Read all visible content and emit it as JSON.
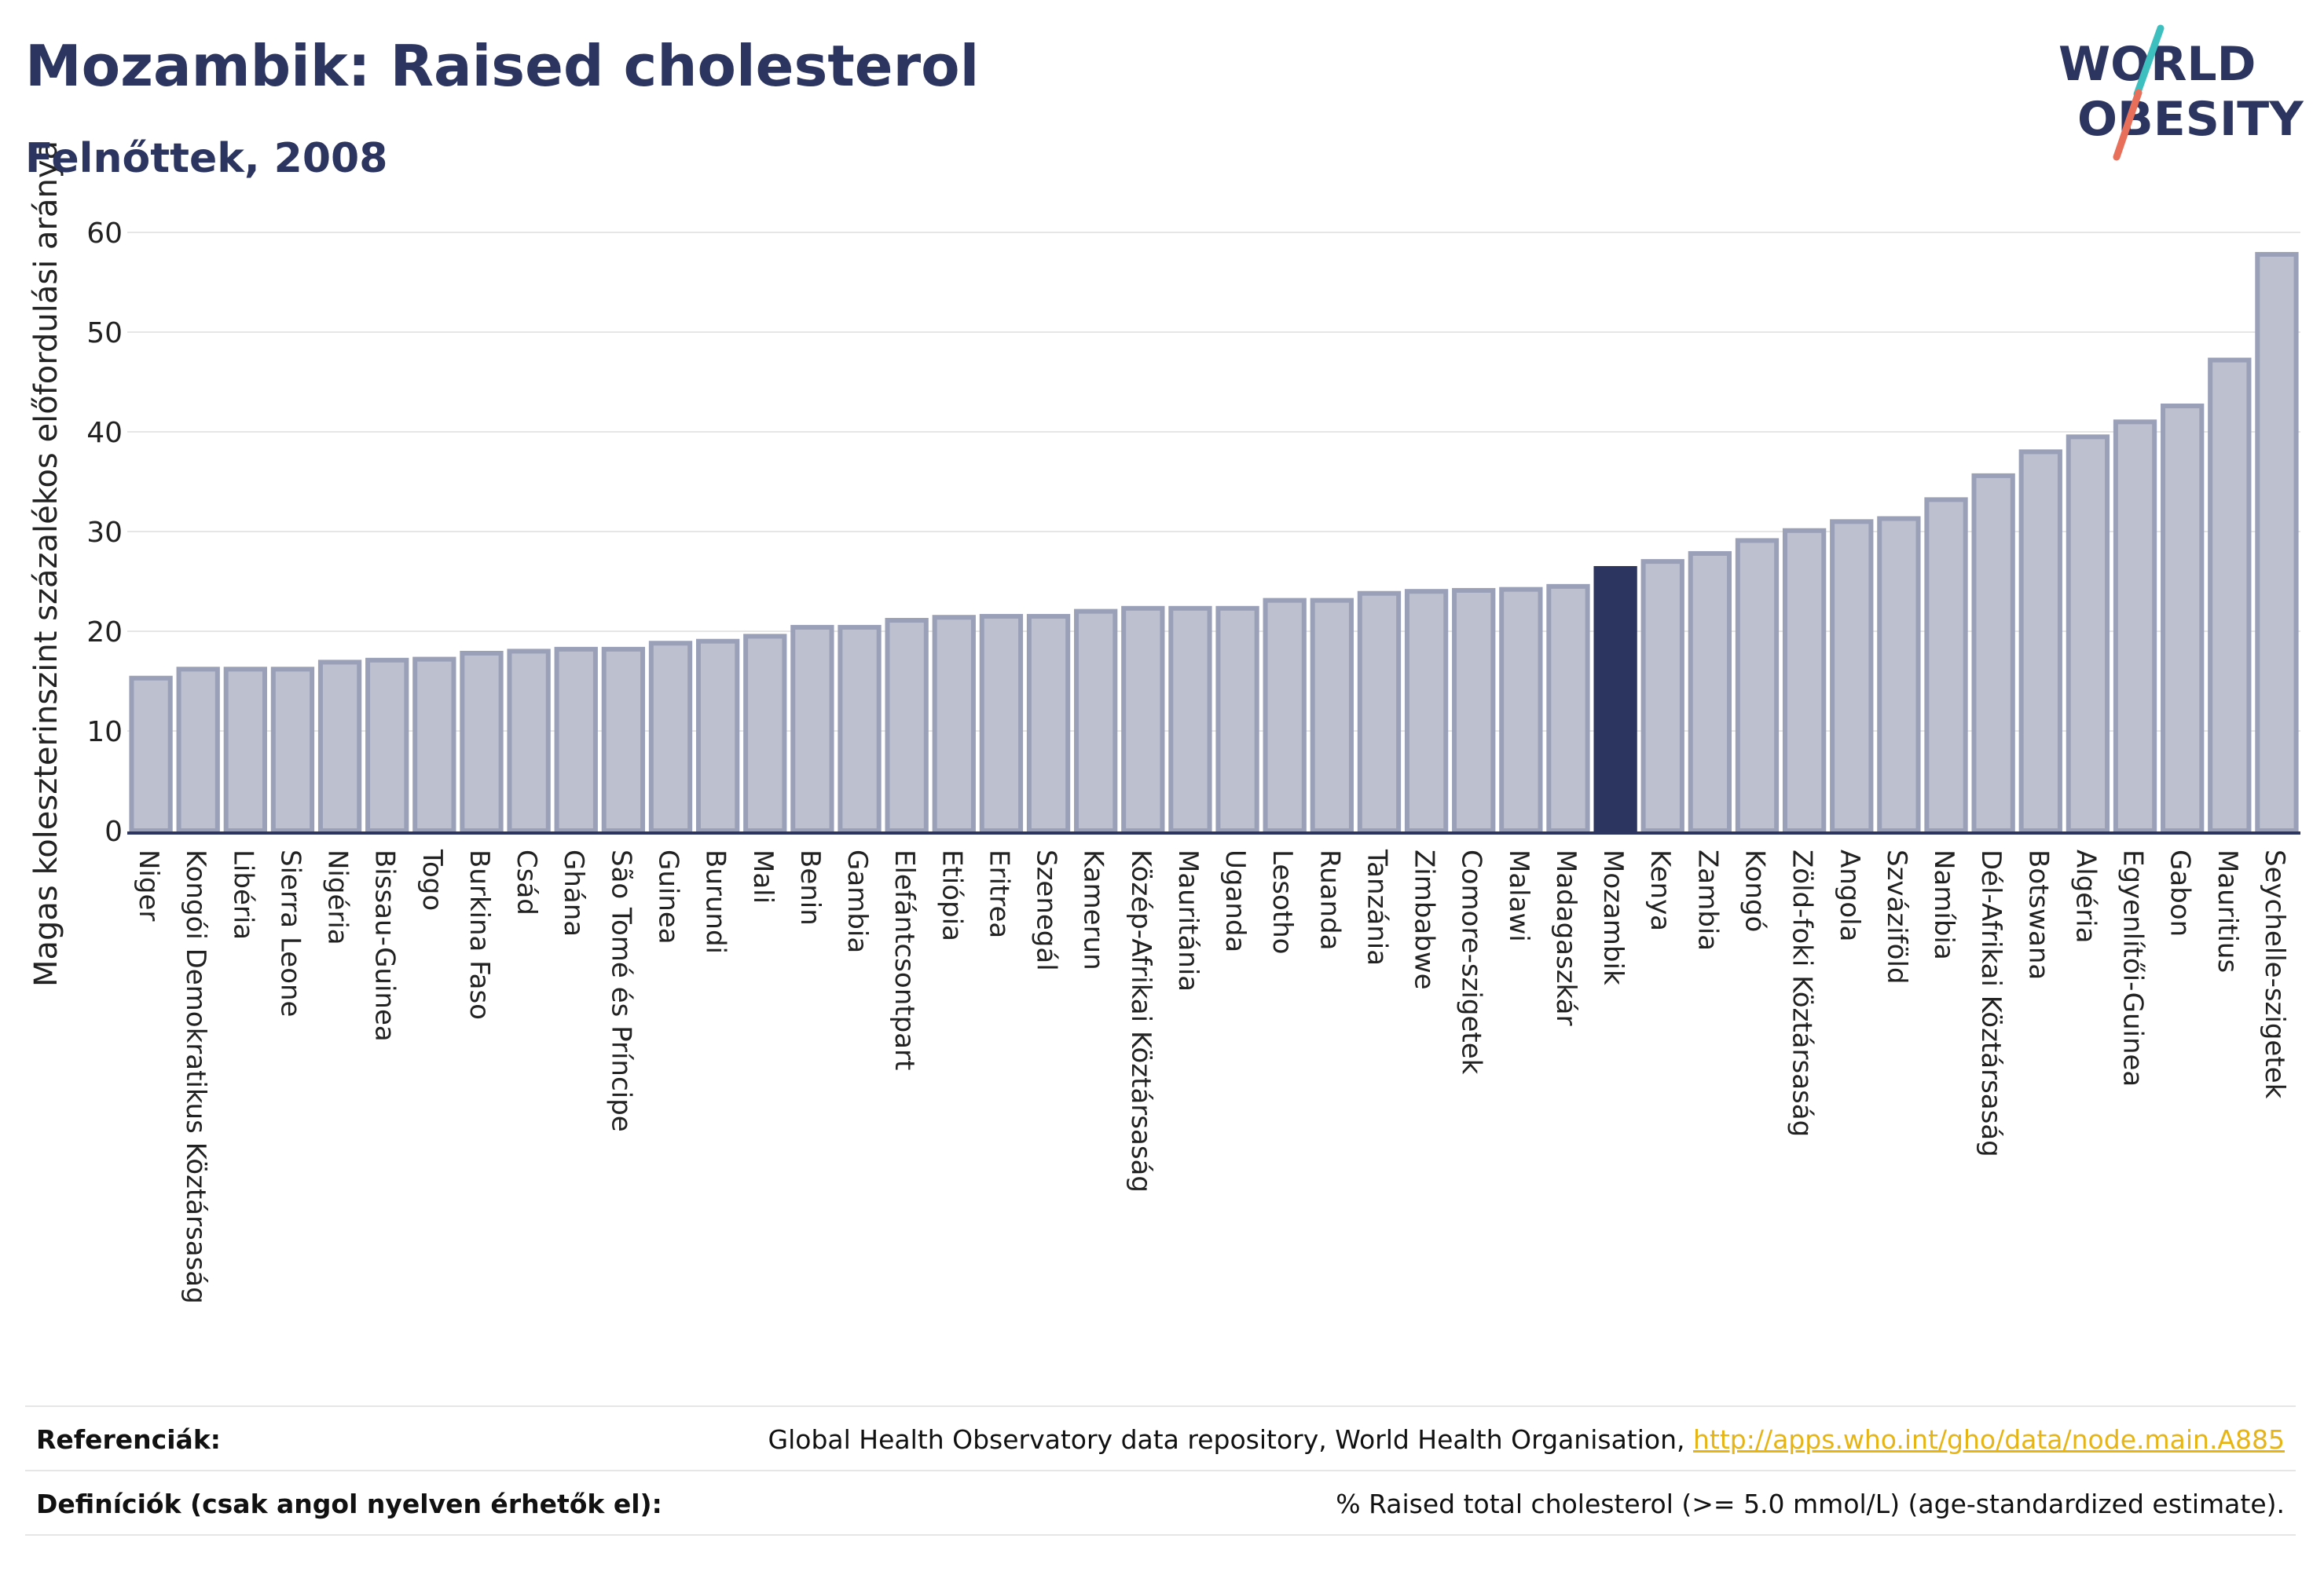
{
  "header": {
    "title": "Mozambik: Raised cholesterol",
    "subtitle": "Felnőttek, 2008"
  },
  "logo": {
    "line1": "WORLD",
    "line2": "OBESITY",
    "colors": {
      "text": "#2c3560",
      "slash_teal": "#3dbfbf",
      "slash_coral": "#e8705a"
    }
  },
  "colors": {
    "bar_fill": "#bcc0cf",
    "bar_stroke": "#9aa0b8",
    "highlight_fill": "#2c3560",
    "grid": "#e6e6e6",
    "axis": "#2c3560"
  },
  "chart_data": {
    "type": "bar",
    "title": "Mozambik: Raised cholesterol",
    "subtitle": "Felnőttek, 2008",
    "xlabel": "",
    "ylabel": "Magas koleszterinszint százalékos előfordulási aránya",
    "ylim": [
      0,
      60
    ],
    "yticks": [
      0,
      10,
      20,
      30,
      40,
      50,
      60
    ],
    "grid": true,
    "highlight": "Mozambik",
    "categories": [
      "Niger",
      "Kongói Demokratikus Köztársaság",
      "Libéria",
      "Sierra Leone",
      "Nigéria",
      "Bissau-Guinea",
      "Togo",
      "Burkina Faso",
      "Csád",
      "Ghána",
      "São Tomé és Príncipe",
      "Guinea",
      "Burundi",
      "Mali",
      "Benin",
      "Gambia",
      "Elefántcsontpart",
      "Etiópia",
      "Eritrea",
      "Szenegál",
      "Kamerun",
      "Közép-Afrikai Köztársaság",
      "Mauritánia",
      "Uganda",
      "Lesotho",
      "Ruanda",
      "Tanzánia",
      "Zimbabwe",
      "Comore-szigetek",
      "Malawi",
      "Madagaszkár",
      "Mozambik",
      "Kenya",
      "Zambia",
      "Kongó",
      "Zöld-foki Köztársaság",
      "Angola",
      "Szváziföld",
      "Namíbia",
      "Dél-Afrikai Köztársaság",
      "Botswana",
      "Algéria",
      "Egyenlítői-Guinea",
      "Gabon",
      "Mauritius",
      "Seychelle-szigetek"
    ],
    "values": [
      15.3,
      16.2,
      16.2,
      16.2,
      16.9,
      17.1,
      17.2,
      17.8,
      18.0,
      18.2,
      18.2,
      18.8,
      19.0,
      19.5,
      20.4,
      20.4,
      21.1,
      21.4,
      21.5,
      21.5,
      22.0,
      22.3,
      22.3,
      22.3,
      23.1,
      23.1,
      23.8,
      24.0,
      24.1,
      24.2,
      24.5,
      26.3,
      27.0,
      27.8,
      29.1,
      30.1,
      31.0,
      31.3,
      33.2,
      35.6,
      38.0,
      39.5,
      41.0,
      42.6,
      47.2,
      57.8
    ]
  },
  "footer": {
    "references_label": "Referenciák:",
    "references_text": "Global Health Observatory data repository, World Health Organisation, ",
    "references_link": "http://apps.who.int/gho/data/node.main.A885",
    "definitions_label": "Definíciók (csak angol nyelven érhetők el):",
    "definitions_text": "% Raised total cholesterol (>= 5.0 mmol/L) (age-standardized estimate)."
  }
}
